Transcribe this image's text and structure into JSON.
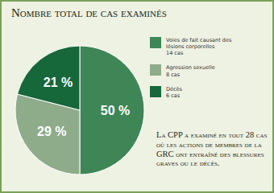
{
  "chart_data": {
    "type": "pie",
    "title": "Nombre total de cas examinés",
    "categories": [
      "Voies de fait causant des lésions corporelles",
      "Agression sexuelle",
      "Décès"
    ],
    "values": [
      50,
      29,
      21
    ],
    "value_labels": [
      "50 %",
      "29 %",
      "21 %"
    ],
    "counts": [
      14,
      8,
      6
    ],
    "count_labels": [
      "14 cas",
      "8 cas",
      "6 cas"
    ],
    "colors": [
      "#3f8657",
      "#8eab8a",
      "#16673a"
    ],
    "data_labels": true,
    "legend": "right",
    "annotation": "La CPP a examiné en tout 28 cas où les actions de membres de la GRC ont entraîné des blessures graves ou le décès."
  }
}
